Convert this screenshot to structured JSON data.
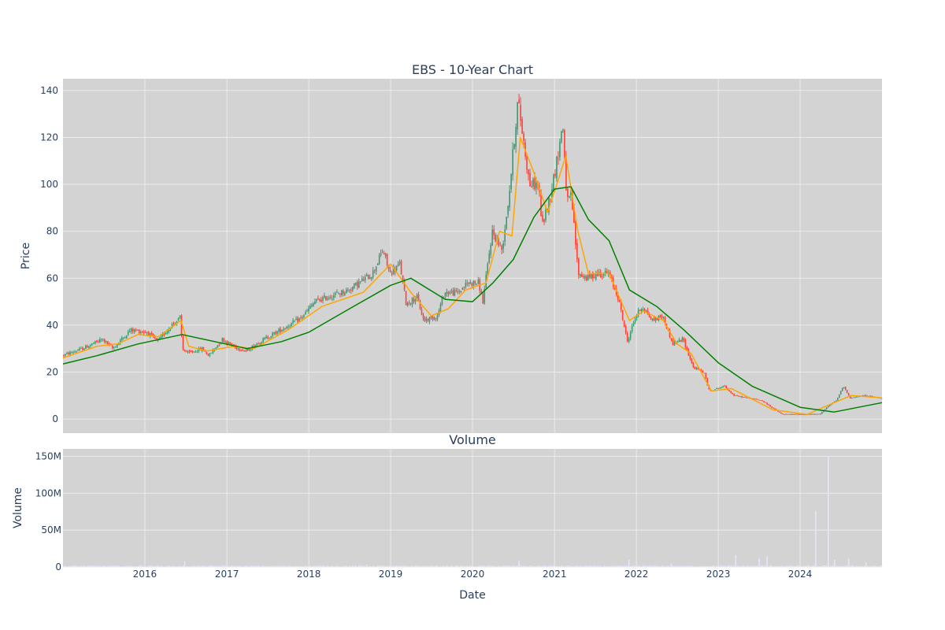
{
  "colors": {
    "plot_bg": "#d3d3d3",
    "grid": "#ebebeb",
    "text": "#2a3f5f",
    "candle_up": "#3d9970",
    "candle_down": "#ff4136",
    "ma_short": "#ffa500",
    "ma_long": "#008000",
    "volume_bar": "#e6e6fa"
  },
  "chart_data": [
    {
      "type": "candlestick",
      "title": "EBS - 10-Year Chart",
      "xlabel": "",
      "ylabel": "Price",
      "ylim": [
        -6,
        145
      ],
      "yticks": [
        0,
        20,
        40,
        60,
        80,
        100,
        120,
        140
      ],
      "x_date_range": [
        "2015-01-01",
        "2024-12-31"
      ],
      "grid": true,
      "legend": "none",
      "price_path": [
        [
          "2015-01-01",
          27
        ],
        [
          "2015-02-01",
          28
        ],
        [
          "2015-04-01",
          30
        ],
        [
          "2015-07-01",
          34
        ],
        [
          "2015-08-15",
          30
        ],
        [
          "2015-11-01",
          38
        ],
        [
          "2016-01-15",
          37
        ],
        [
          "2016-03-01",
          33
        ],
        [
          "2016-05-01",
          40
        ],
        [
          "2016-06-10",
          43
        ],
        [
          "2016-06-20",
          30
        ],
        [
          "2016-07-15",
          28
        ],
        [
          "2016-09-15",
          30
        ],
        [
          "2016-10-15",
          27
        ],
        [
          "2016-12-15",
          34
        ],
        [
          "2017-02-01",
          31
        ],
        [
          "2017-04-01",
          29
        ],
        [
          "2017-06-01",
          33
        ],
        [
          "2017-09-01",
          38
        ],
        [
          "2017-12-01",
          43
        ],
        [
          "2018-02-01",
          50
        ],
        [
          "2018-04-01",
          52
        ],
        [
          "2018-07-01",
          55
        ],
        [
          "2018-10-15",
          62
        ],
        [
          "2018-12-01",
          72
        ],
        [
          "2019-01-01",
          62
        ],
        [
          "2019-02-15",
          66
        ],
        [
          "2019-03-15",
          49
        ],
        [
          "2019-05-01",
          52
        ],
        [
          "2019-06-01",
          42
        ],
        [
          "2019-08-01",
          44
        ],
        [
          "2019-09-01",
          54
        ],
        [
          "2019-11-01",
          54
        ],
        [
          "2019-12-15",
          58
        ],
        [
          "2020-02-01",
          58
        ],
        [
          "2020-02-20",
          50
        ],
        [
          "2020-04-01",
          80
        ],
        [
          "2020-05-15",
          72
        ],
        [
          "2020-06-15",
          95
        ],
        [
          "2020-07-25",
          136
        ],
        [
          "2020-08-20",
          118
        ],
        [
          "2020-09-15",
          100
        ],
        [
          "2020-10-25",
          100
        ],
        [
          "2020-11-10",
          82
        ],
        [
          "2020-12-15",
          95
        ],
        [
          "2021-01-15",
          110
        ],
        [
          "2021-02-10",
          126
        ],
        [
          "2021-03-01",
          92
        ],
        [
          "2021-03-20",
          95
        ],
        [
          "2021-04-20",
          62
        ],
        [
          "2021-06-01",
          60
        ],
        [
          "2021-07-15",
          62
        ],
        [
          "2021-09-01",
          62
        ],
        [
          "2021-10-15",
          52
        ],
        [
          "2021-11-25",
          33
        ],
        [
          "2022-01-01",
          44
        ],
        [
          "2022-02-01",
          48
        ],
        [
          "2022-03-15",
          42
        ],
        [
          "2022-05-01",
          44
        ],
        [
          "2022-06-15",
          32
        ],
        [
          "2022-08-01",
          34
        ],
        [
          "2022-09-15",
          22
        ],
        [
          "2022-11-01",
          20
        ],
        [
          "2022-11-25",
          12
        ],
        [
          "2023-02-01",
          14
        ],
        [
          "2023-03-15",
          10
        ],
        [
          "2023-05-15",
          9
        ],
        [
          "2023-07-15",
          8
        ],
        [
          "2023-09-15",
          4
        ],
        [
          "2023-10-15",
          2
        ],
        [
          "2024-01-15",
          2
        ],
        [
          "2024-04-01",
          2
        ],
        [
          "2024-05-01",
          5
        ],
        [
          "2024-06-15",
          8
        ],
        [
          "2024-07-15",
          14
        ],
        [
          "2024-08-15",
          9
        ],
        [
          "2024-10-15",
          10
        ],
        [
          "2024-12-31",
          9
        ]
      ],
      "moving_averages": [
        {
          "color": "#ffa500",
          "points": [
            [
              "2015-01-01",
              26
            ],
            [
              "2015-06-01",
              31
            ],
            [
              "2015-09-01",
              32
            ],
            [
              "2015-12-01",
              36
            ],
            [
              "2016-03-01",
              35
            ],
            [
              "2016-06-10",
              42
            ],
            [
              "2016-07-15",
              31
            ],
            [
              "2016-10-01",
              29
            ],
            [
              "2017-02-01",
              31
            ],
            [
              "2017-05-01",
              30
            ],
            [
              "2017-10-01",
              38
            ],
            [
              "2018-03-01",
              48
            ],
            [
              "2018-09-01",
              54
            ],
            [
              "2019-01-01",
              66
            ],
            [
              "2019-04-01",
              54
            ],
            [
              "2019-07-01",
              44
            ],
            [
              "2019-09-15",
              47
            ],
            [
              "2019-12-01",
              55
            ],
            [
              "2020-03-01",
              58
            ],
            [
              "2020-05-01",
              80
            ],
            [
              "2020-06-25",
              78
            ],
            [
              "2020-08-01",
              120
            ],
            [
              "2020-10-01",
              105
            ],
            [
              "2020-12-01",
              88
            ],
            [
              "2021-02-20",
              112
            ],
            [
              "2021-04-15",
              80
            ],
            [
              "2021-06-01",
              62
            ],
            [
              "2021-09-01",
              62
            ],
            [
              "2021-12-01",
              42
            ],
            [
              "2022-02-01",
              46
            ],
            [
              "2022-05-01",
              42
            ],
            [
              "2022-07-01",
              32
            ],
            [
              "2022-09-01",
              28
            ],
            [
              "2022-12-01",
              12
            ],
            [
              "2023-03-01",
              13
            ],
            [
              "2023-09-01",
              4
            ],
            [
              "2024-02-01",
              2
            ],
            [
              "2024-06-01",
              7
            ],
            [
              "2024-08-15",
              10
            ],
            [
              "2024-12-31",
              9
            ]
          ]
        },
        {
          "color": "#008000",
          "points": [
            [
              "2015-01-01",
              23.5
            ],
            [
              "2015-06-01",
              27
            ],
            [
              "2015-12-01",
              32
            ],
            [
              "2016-06-15",
              36
            ],
            [
              "2017-04-01",
              30
            ],
            [
              "2017-09-01",
              33
            ],
            [
              "2018-01-01",
              37
            ],
            [
              "2018-07-01",
              47
            ],
            [
              "2019-01-01",
              57
            ],
            [
              "2019-04-01",
              60
            ],
            [
              "2019-09-01",
              51
            ],
            [
              "2020-01-01",
              50
            ],
            [
              "2020-04-01",
              58
            ],
            [
              "2020-07-01",
              68
            ],
            [
              "2020-10-01",
              86
            ],
            [
              "2021-01-01",
              98
            ],
            [
              "2021-03-15",
              99
            ],
            [
              "2021-06-01",
              85
            ],
            [
              "2021-09-01",
              76
            ],
            [
              "2021-12-01",
              55
            ],
            [
              "2022-04-01",
              48
            ],
            [
              "2022-08-01",
              38
            ],
            [
              "2023-01-01",
              24
            ],
            [
              "2023-06-01",
              14
            ],
            [
              "2024-01-01",
              5
            ],
            [
              "2024-06-01",
              3
            ],
            [
              "2024-12-31",
              7
            ]
          ]
        }
      ]
    },
    {
      "type": "bar",
      "title": "Volume",
      "xlabel": "Date",
      "ylabel": "Volume",
      "ylim": [
        0,
        160000000
      ],
      "yticks": [
        0,
        50000000,
        100000000,
        150000000
      ],
      "ytick_labels": [
        "0",
        "50M",
        "100M",
        "150M"
      ],
      "xticks": [
        "2016",
        "2017",
        "2018",
        "2019",
        "2020",
        "2021",
        "2022",
        "2023",
        "2024"
      ],
      "base_volume": 1500000,
      "spikes": [
        [
          "2016-06-20",
          8000000
        ],
        [
          "2018-09-15",
          3000000
        ],
        [
          "2020-07-20",
          9000000
        ],
        [
          "2021-11-25",
          10000000
        ],
        [
          "2022-06-01",
          5000000
        ],
        [
          "2023-03-15",
          16000000
        ],
        [
          "2023-07-01",
          12000000
        ],
        [
          "2023-08-01",
          14000000
        ],
        [
          "2024-03-05",
          76000000
        ],
        [
          "2024-05-01",
          150000000
        ],
        [
          "2024-06-01",
          10000000
        ],
        [
          "2024-08-01",
          12000000
        ],
        [
          "2024-10-15",
          6000000
        ]
      ]
    }
  ]
}
